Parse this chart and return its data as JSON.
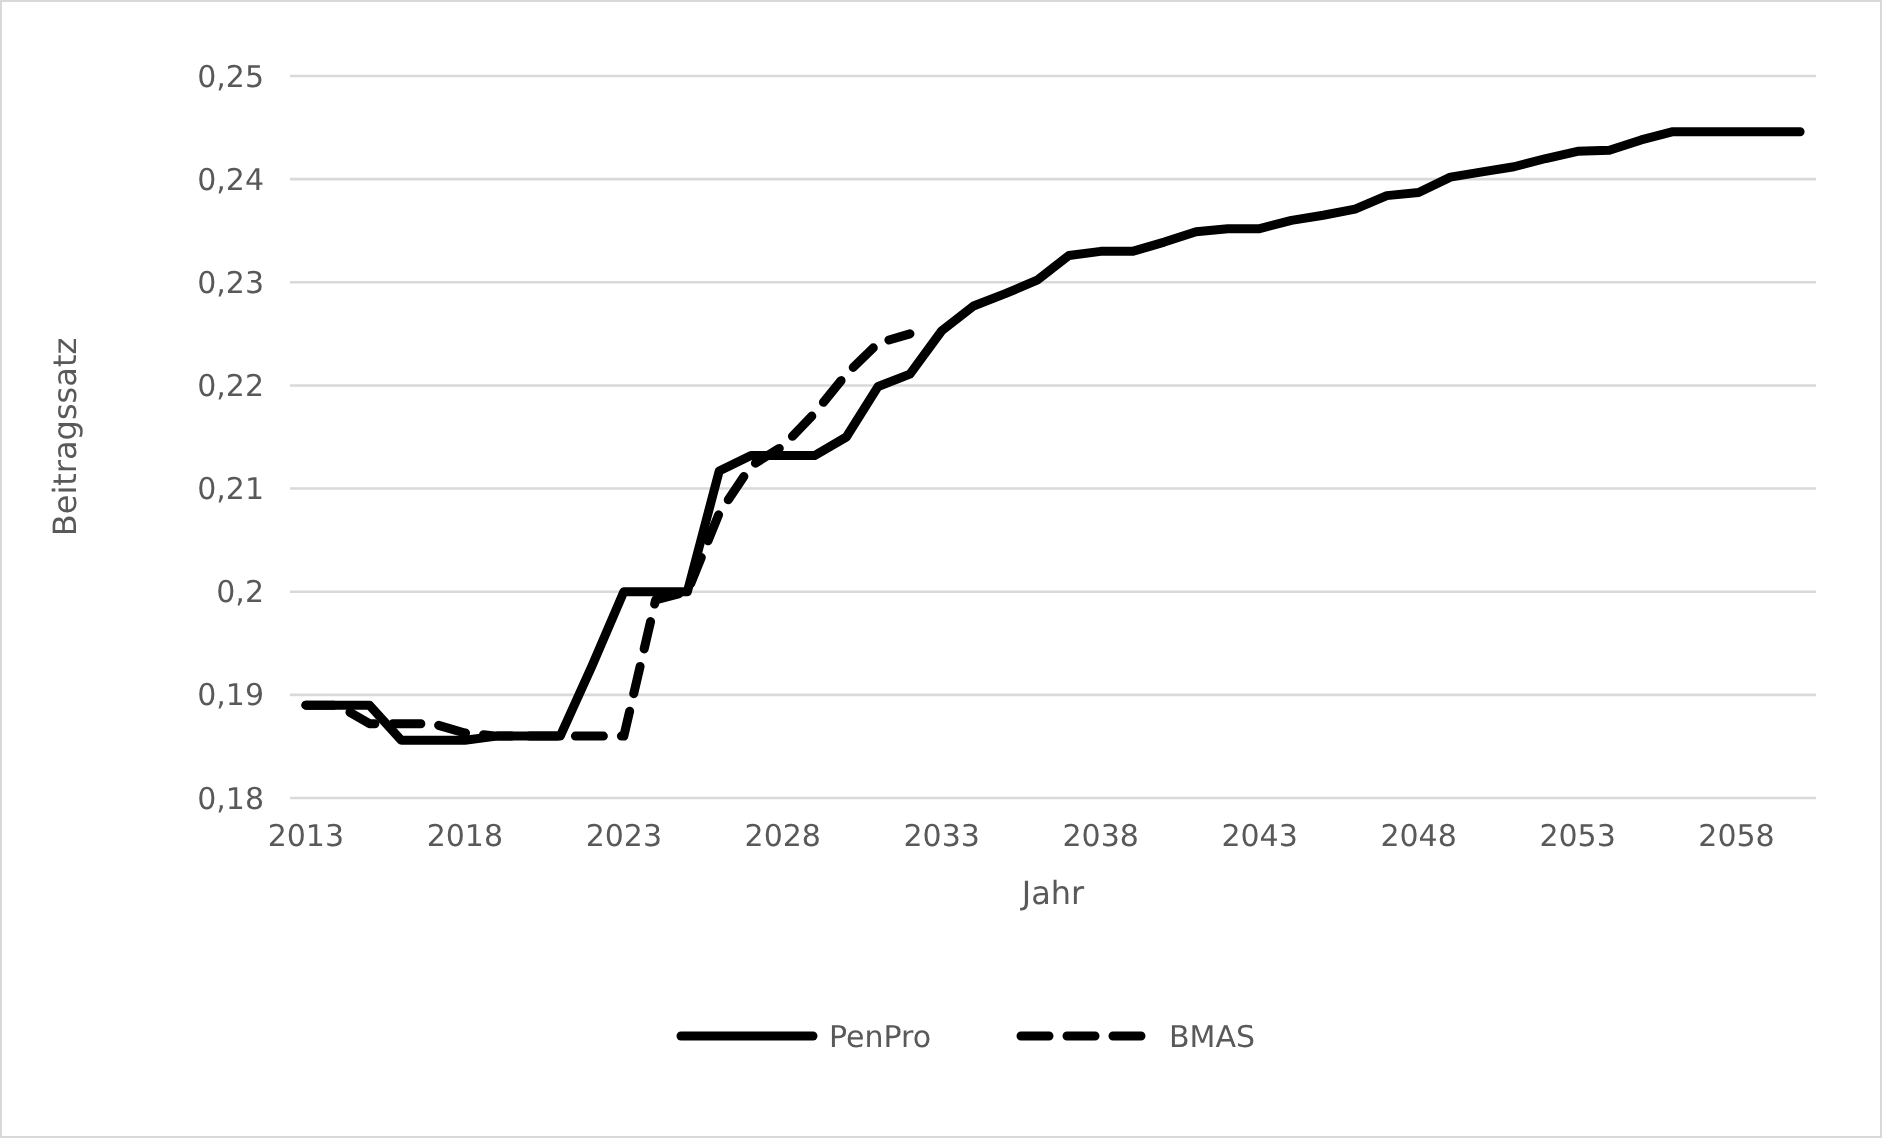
{
  "chart_data": {
    "type": "line",
    "xlabel": "Jahr",
    "ylabel": "Beitragssatz",
    "x": [
      2013,
      2014,
      2015,
      2016,
      2017,
      2018,
      2019,
      2020,
      2021,
      2022,
      2023,
      2024,
      2025,
      2026,
      2027,
      2028,
      2029,
      2030,
      2031,
      2032,
      2033,
      2034,
      2035,
      2036,
      2037,
      2038,
      2039,
      2040,
      2041,
      2042,
      2043,
      2044,
      2045,
      2046,
      2047,
      2048,
      2049,
      2050,
      2051,
      2052,
      2053,
      2054,
      2055,
      2056,
      2057,
      2058,
      2059,
      2060
    ],
    "series": [
      {
        "name": "PenPro",
        "color": "#000000",
        "line_style": "solid",
        "values": [
          0.189,
          0.189,
          0.189,
          0.1856,
          0.1856,
          0.1856,
          0.186,
          0.186,
          0.186,
          0.1928,
          0.2,
          0.2,
          0.2,
          0.2117,
          0.2132,
          0.2132,
          0.2132,
          0.215,
          0.2199,
          0.2211,
          0.2253,
          0.2277,
          0.2289,
          0.2302,
          0.2326,
          0.233,
          0.233,
          0.2339,
          0.2349,
          0.2352,
          0.2352,
          0.236,
          0.2365,
          0.2371,
          0.2384,
          0.2387,
          0.2402,
          0.2407,
          0.2412,
          0.242,
          0.2427,
          0.2428,
          0.2438,
          0.2446,
          0.2446,
          0.2446,
          0.2446,
          0.2446
        ]
      },
      {
        "name": "BMAS",
        "color": "#000000",
        "line_style": "dashed",
        "values": [
          0.189,
          0.189,
          0.1872,
          0.1872,
          0.1872,
          0.1863,
          0.186,
          0.186,
          0.186,
          0.186,
          0.186,
          0.1992,
          0.2,
          0.2076,
          0.2122,
          0.2141,
          0.2173,
          0.2211,
          0.2241,
          0.225,
          null,
          null,
          null,
          null,
          null,
          null,
          null,
          null,
          null,
          null,
          null,
          null,
          null,
          null,
          null,
          null,
          null,
          null,
          null,
          null,
          null,
          null,
          null,
          null,
          null,
          null,
          null,
          null
        ]
      }
    ],
    "xlim": [
      2012.5,
      2060.5
    ],
    "xticks": [
      2013,
      2018,
      2023,
      2028,
      2033,
      2038,
      2043,
      2048,
      2053,
      2058
    ],
    "ylim": [
      0.18,
      0.25
    ],
    "yticks": [
      {
        "value": 0.18,
        "label": "0,18"
      },
      {
        "value": 0.19,
        "label": "0,19"
      },
      {
        "value": 0.2,
        "label": "0,2"
      },
      {
        "value": 0.21,
        "label": "0,21"
      },
      {
        "value": 0.22,
        "label": "0,22"
      },
      {
        "value": 0.23,
        "label": "0,23"
      },
      {
        "value": 0.24,
        "label": "0,24"
      },
      {
        "value": 0.25,
        "label": "0,25"
      }
    ],
    "grid": "y",
    "legend": "bottom"
  }
}
